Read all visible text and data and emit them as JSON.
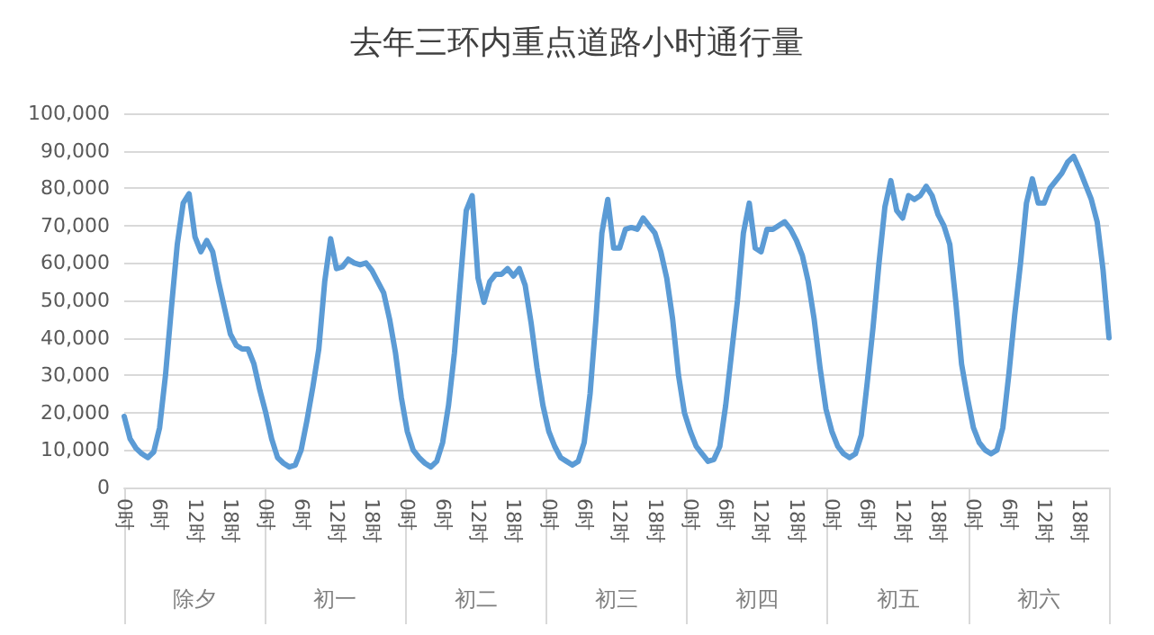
{
  "chart_data": {
    "type": "line",
    "title": "去年三环内重点道路小时通行量",
    "categories": [
      "0时",
      null,
      null,
      null,
      null,
      null,
      "6时",
      null,
      null,
      null,
      null,
      null,
      "12时",
      null,
      null,
      null,
      null,
      null,
      "18时",
      null,
      null,
      null,
      null,
      null,
      "0时",
      null,
      null,
      null,
      null,
      null,
      "6时",
      null,
      null,
      null,
      null,
      null,
      "12时",
      null,
      null,
      null,
      null,
      null,
      "18时",
      null,
      null,
      null,
      null,
      null,
      "0时",
      null,
      null,
      null,
      null,
      null,
      "6时",
      null,
      null,
      null,
      null,
      null,
      "12时",
      null,
      null,
      null,
      null,
      null,
      "18时",
      null,
      null,
      null,
      null,
      null,
      "0时",
      null,
      null,
      null,
      null,
      null,
      "6时",
      null,
      null,
      null,
      null,
      null,
      "12时",
      null,
      null,
      null,
      null,
      null,
      "18时",
      null,
      null,
      null,
      null,
      null,
      "0时",
      null,
      null,
      null,
      null,
      null,
      "6时",
      null,
      null,
      null,
      null,
      null,
      "12时",
      null,
      null,
      null,
      null,
      null,
      "18时",
      null,
      null,
      null,
      null,
      null,
      "0时",
      null,
      null,
      null,
      null,
      null,
      "6时",
      null,
      null,
      null,
      null,
      null,
      "12时",
      null,
      null,
      null,
      null,
      null,
      "18时",
      null,
      null,
      null,
      null,
      null,
      "0时",
      null,
      null,
      null,
      null,
      null,
      "6时",
      null,
      null,
      null,
      null,
      null,
      "12时",
      null,
      null,
      null,
      null,
      null,
      "18时",
      null,
      null,
      null,
      null,
      null
    ],
    "annotations": [
      "除夕",
      "初一",
      "初二",
      "初三",
      "初四",
      "初五",
      "初六"
    ],
    "series": [
      {
        "color": "#5b9bd5",
        "values": [
          19000,
          13000,
          10500,
          9000,
          8000,
          9500,
          16000,
          30000,
          48000,
          65000,
          76000,
          78500,
          67000,
          63000,
          66000,
          63000,
          55000,
          48000,
          41000,
          38000,
          37000,
          37000,
          33000,
          26000,
          20000,
          13000,
          8000,
          6500,
          5500,
          6000,
          10000,
          18000,
          27000,
          37000,
          55000,
          66500,
          58500,
          59000,
          61000,
          60000,
          59500,
          60000,
          58000,
          55000,
          52000,
          45000,
          36000,
          24000,
          15000,
          10000,
          8000,
          6500,
          5500,
          7000,
          12000,
          22000,
          36000,
          55000,
          74000,
          78000,
          56000,
          49500,
          55000,
          57000,
          57000,
          58500,
          56500,
          58500,
          54000,
          44000,
          32000,
          22000,
          15000,
          11000,
          8000,
          7000,
          6000,
          7000,
          12000,
          25000,
          45000,
          68000,
          77000,
          64000,
          64000,
          69000,
          69500,
          69000,
          72000,
          70000,
          68000,
          63000,
          56000,
          45000,
          30000,
          20000,
          15000,
          11000,
          9000,
          7000,
          7500,
          11000,
          22000,
          36000,
          50000,
          68000,
          76000,
          64000,
          63000,
          69000,
          69000,
          70000,
          71000,
          69000,
          66000,
          62000,
          55000,
          45000,
          32000,
          21000,
          15000,
          11000,
          9000,
          8000,
          9000,
          14000,
          28000,
          43000,
          60000,
          75000,
          82000,
          74000,
          72000,
          78000,
          77000,
          78000,
          80500,
          78000,
          73000,
          70000,
          65000,
          50000,
          33000,
          24000,
          16000,
          12000,
          10000,
          9000,
          10000,
          16000,
          30000,
          46000,
          60000,
          76000,
          82500,
          76000,
          76000,
          80000,
          82000,
          84000,
          87000,
          88500,
          85000,
          81000,
          77000,
          71000,
          58000,
          40000
        ]
      }
    ],
    "ylim": [
      0,
      100000
    ],
    "yticks": [
      0,
      {
        "value": 10000,
        "label": "10,000"
      },
      {
        "value": 20000,
        "label": "20,000"
      },
      {
        "value": 30000,
        "label": "30,000"
      },
      {
        "value": 40000,
        "label": "40,000"
      },
      {
        "value": 50000,
        "label": "50,000"
      },
      {
        "value": 60000,
        "label": "60,000"
      },
      {
        "value": 70000,
        "label": "70,000"
      },
      {
        "value": 80000,
        "label": "80,000"
      },
      {
        "value": 90000,
        "label": "90,000"
      },
      {
        "value": 100000,
        "label": "100,000"
      }
    ],
    "grid": "y",
    "marker": "none",
    "line_style": "solid"
  }
}
